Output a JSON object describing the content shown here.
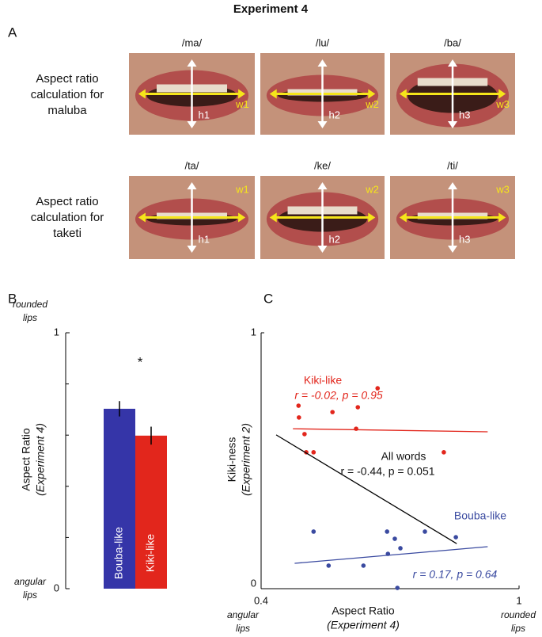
{
  "title": "Experiment 4",
  "panel_a": {
    "label": "A",
    "rows": [
      {
        "label": [
          "Aspect ratio",
          "calculation for",
          "maluba"
        ],
        "items": [
          {
            "syllable": "/ma/",
            "w": "w1",
            "h": "h1"
          },
          {
            "syllable": "/lu/",
            "w": "w2",
            "h": "h2"
          },
          {
            "syllable": "/ba/",
            "w": "w3",
            "h": "h3"
          }
        ]
      },
      {
        "label": [
          "Aspect ratio",
          "calculation for",
          "taketi"
        ],
        "items": [
          {
            "syllable": "/ta/",
            "w": "w1",
            "h": "h1"
          },
          {
            "syllable": "/ke/",
            "w": "w2",
            "h": "h2"
          },
          {
            "syllable": "/ti/",
            "w": "w3",
            "h": "h3"
          }
        ]
      }
    ]
  },
  "chart_data": [
    {
      "type": "bar",
      "panel": "B",
      "categories": [
        "Bouba-like",
        "Kiki-like"
      ],
      "values": [
        0.703,
        0.598
      ],
      "errors": [
        0.03,
        0.035
      ],
      "colors": [
        "#3535a8",
        "#e2261c"
      ],
      "ylim": [
        0,
        1
      ],
      "yticks": [
        0,
        1
      ],
      "yminor": [
        0.2,
        0.4,
        0.6,
        0.8
      ],
      "ylabel": [
        "Aspect Ratio",
        "(Experiment 4)"
      ],
      "ytop_label": [
        "rounded",
        "lips"
      ],
      "ybottom_label": [
        "angular",
        "lips"
      ],
      "annotation": "*"
    },
    {
      "type": "scatter",
      "panel": "C",
      "xlim": [
        0.4,
        1
      ],
      "xticks": [
        0.4,
        1
      ],
      "ylim": [
        0,
        1
      ],
      "yticks": [
        0,
        1
      ],
      "xlabel": [
        "Aspect Ratio",
        "(Experiment 4)"
      ],
      "ylabel": [
        "Kiki-ness",
        "(Experiment 2)"
      ],
      "xleft_label": [
        "angular",
        "lips"
      ],
      "xright_label": [
        "rounded",
        "lips"
      ],
      "series": [
        {
          "name": "Kiki-like",
          "stats": "r = -0.02, p = 0.95",
          "color": "#e2261c",
          "x": [
            0.487,
            0.488,
            0.501,
            0.505,
            0.522,
            0.566,
            0.625,
            0.621,
            0.671,
            0.825
          ],
          "y": [
            0.715,
            0.669,
            0.604,
            0.533,
            0.533,
            0.69,
            0.709,
            0.625,
            0.783,
            0.533
          ],
          "fit": {
            "x": [
              0.474,
              0.927
            ],
            "y": [
              0.625,
              0.613
            ]
          }
        },
        {
          "name": "Bouba-like",
          "stats": "r = 0.17, p = 0.64",
          "color": "#3a4aa0",
          "x": [
            0.522,
            0.557,
            0.638,
            0.693,
            0.695,
            0.711,
            0.724,
            0.781,
            0.853,
            0.717
          ],
          "y": [
            0.223,
            0.09,
            0.09,
            0.223,
            0.136,
            0.195,
            0.158,
            0.223,
            0.201,
            0.003
          ],
          "fit": {
            "x": [
              0.478,
              0.927
            ],
            "y": [
              0.099,
              0.164
            ]
          }
        }
      ],
      "all_words": {
        "name": "All words",
        "stats": "r = -0.44, p = 0.051",
        "color": "#000000",
        "fit": {
          "x": [
            0.435,
            0.855
          ],
          "y": [
            0.601,
            0.176
          ]
        }
      }
    }
  ]
}
